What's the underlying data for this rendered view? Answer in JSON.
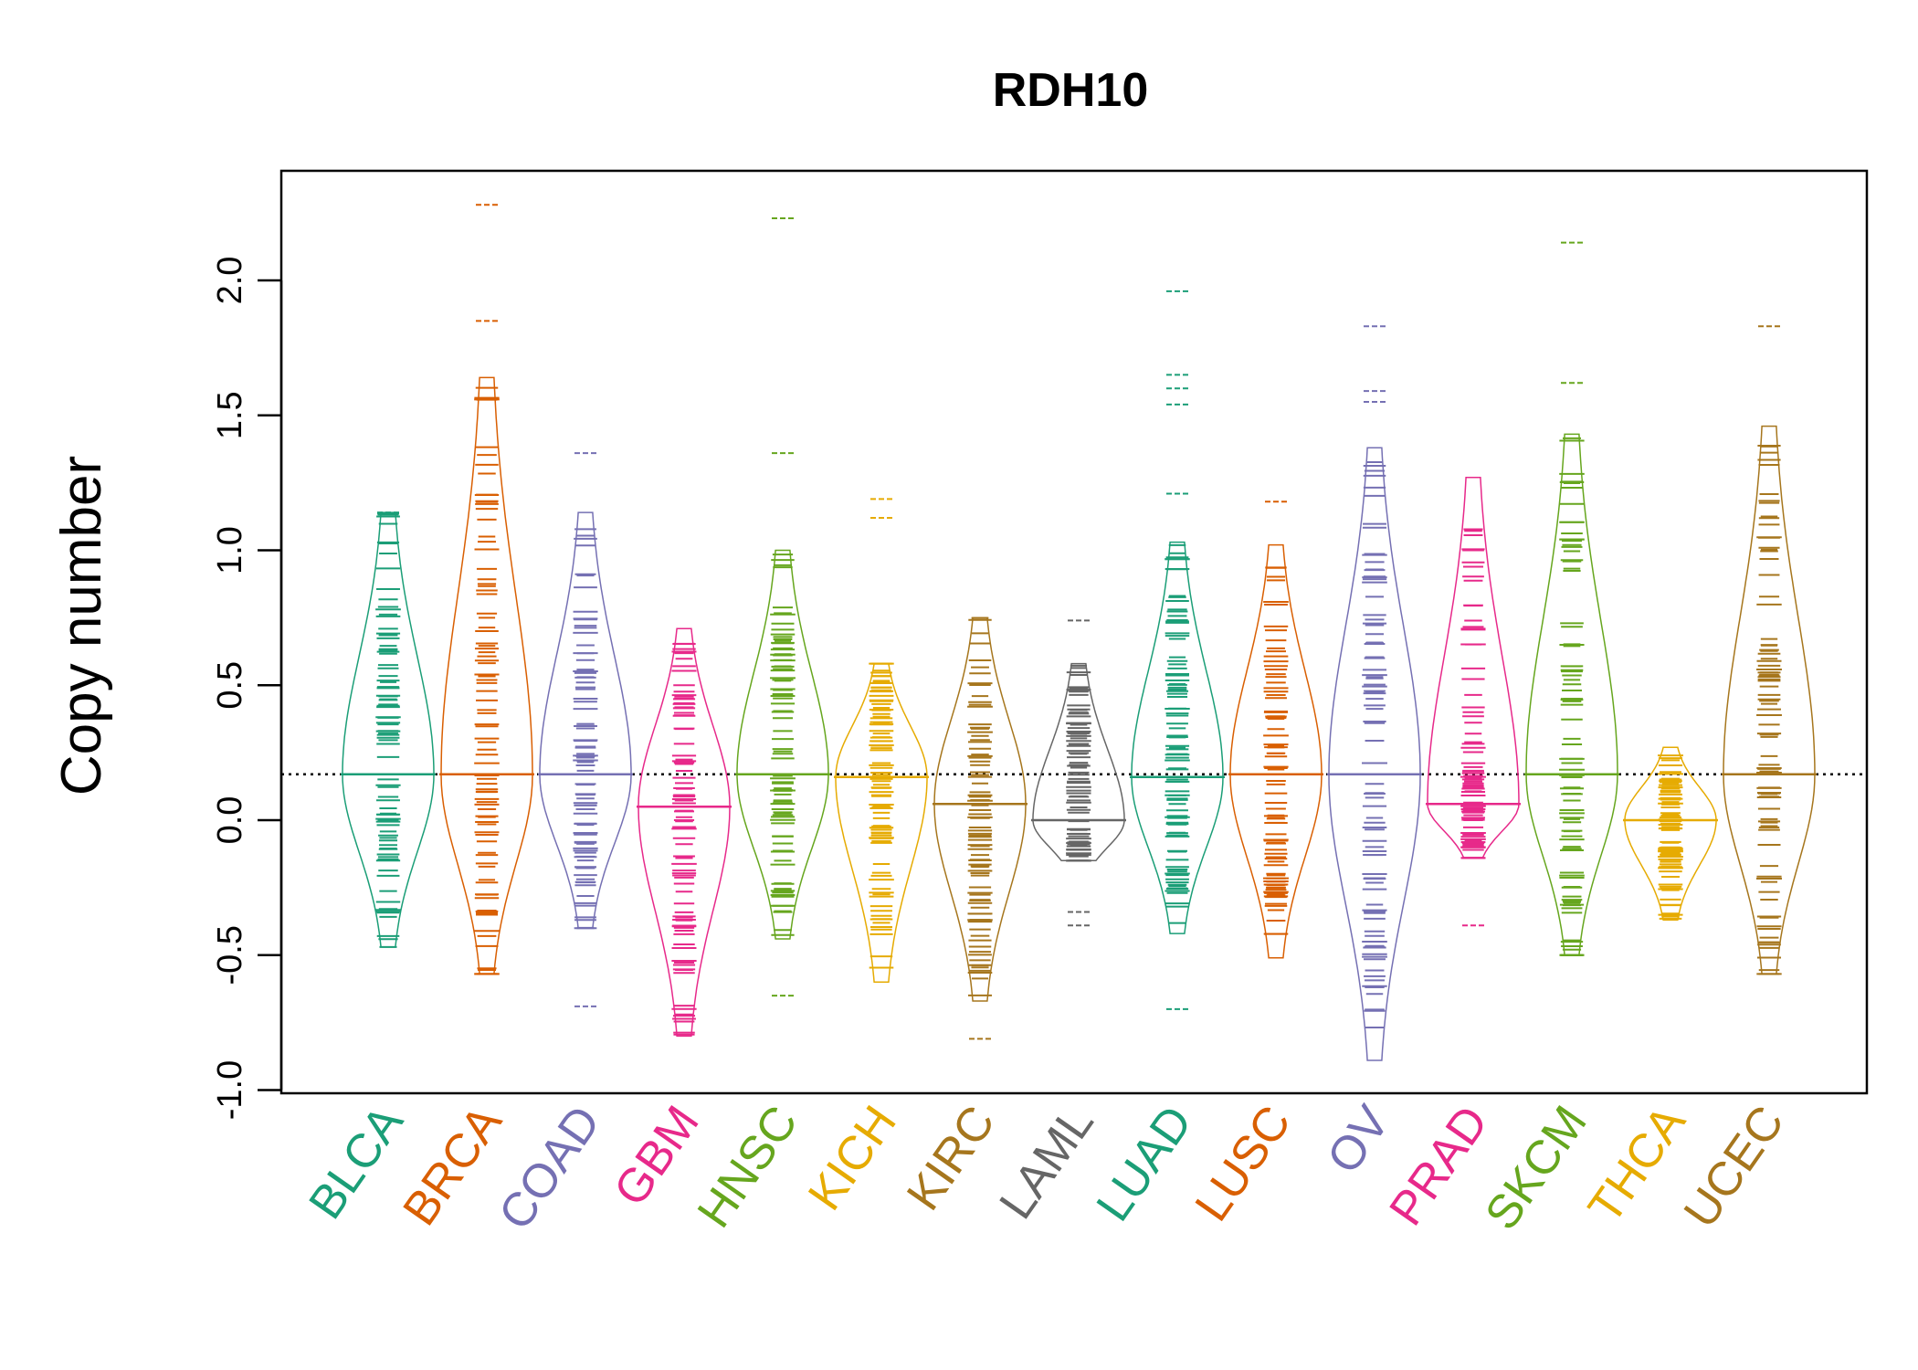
{
  "chart_data": {
    "type": "beanplot",
    "title": "RDH10",
    "xlabel": "",
    "ylabel": "Copy number",
    "ylim": [
      -1.0,
      2.35
    ],
    "yticks": [
      "-1.0",
      "-0.5",
      "0.0",
      "0.5",
      "1.0",
      "1.5",
      "2.0"
    ],
    "grid": false,
    "legend": "none",
    "overall_line": 0.17,
    "categories": [
      "BLCA",
      "BRCA",
      "COAD",
      "GBM",
      "HNSC",
      "KICH",
      "KIRC",
      "LAML",
      "LUAD",
      "LUSC",
      "OV",
      "PRAD",
      "SKCM",
      "THCA",
      "UCEC"
    ],
    "colors": [
      "#1b9e77",
      "#d95f02",
      "#7570b3",
      "#e7298a",
      "#66a61e",
      "#e6ab02",
      "#a6761d",
      "#666666",
      "#1b9e77",
      "#d95f02",
      "#7570b3",
      "#e7298a",
      "#66a61e",
      "#e6ab02",
      "#a6761d"
    ],
    "series": [
      {
        "name": "BLCA",
        "min": -0.47,
        "max": 1.14,
        "mean": 0.17,
        "outliers": [
          1.14
        ]
      },
      {
        "name": "BRCA",
        "min": -0.57,
        "max": 1.64,
        "mean": 0.17,
        "outliers": [
          1.85,
          2.28
        ]
      },
      {
        "name": "COAD",
        "min": -0.4,
        "max": 1.14,
        "mean": 0.17,
        "outliers": [
          1.36,
          -0.69
        ]
      },
      {
        "name": "GBM",
        "min": -0.8,
        "max": 0.71,
        "mean": 0.05,
        "outliers": []
      },
      {
        "name": "HNSC",
        "min": -0.44,
        "max": 1.0,
        "mean": 0.17,
        "outliers": [
          1.36,
          2.23,
          -0.65
        ]
      },
      {
        "name": "KICH",
        "min": -0.6,
        "max": 0.58,
        "mean": 0.16,
        "outliers": [
          1.12,
          1.19
        ]
      },
      {
        "name": "KIRC",
        "min": -0.67,
        "max": 0.75,
        "mean": 0.06,
        "outliers": [
          -0.81
        ]
      },
      {
        "name": "LAML",
        "min": -0.15,
        "max": 0.58,
        "mean": 0.0,
        "outliers": [
          0.74,
          -0.34,
          -0.39
        ]
      },
      {
        "name": "LUAD",
        "min": -0.42,
        "max": 1.03,
        "mean": 0.16,
        "outliers": [
          1.21,
          1.54,
          1.6,
          1.65,
          1.96,
          -0.7
        ]
      },
      {
        "name": "LUSC",
        "min": -0.51,
        "max": 1.02,
        "mean": 0.17,
        "outliers": [
          1.18
        ]
      },
      {
        "name": "OV",
        "min": -0.89,
        "max": 1.38,
        "mean": 0.17,
        "outliers": [
          1.55,
          1.59,
          1.83
        ]
      },
      {
        "name": "PRAD",
        "min": -0.14,
        "max": 1.27,
        "mean": 0.06,
        "outliers": [
          -0.39
        ]
      },
      {
        "name": "SKCM",
        "min": -0.5,
        "max": 1.43,
        "mean": 0.17,
        "outliers": [
          1.62,
          2.14
        ]
      },
      {
        "name": "THCA",
        "min": -0.37,
        "max": 0.27,
        "mean": 0.0,
        "outliers": []
      },
      {
        "name": "UCEC",
        "min": -0.57,
        "max": 1.46,
        "mean": 0.17,
        "outliers": [
          1.83
        ]
      }
    ]
  }
}
